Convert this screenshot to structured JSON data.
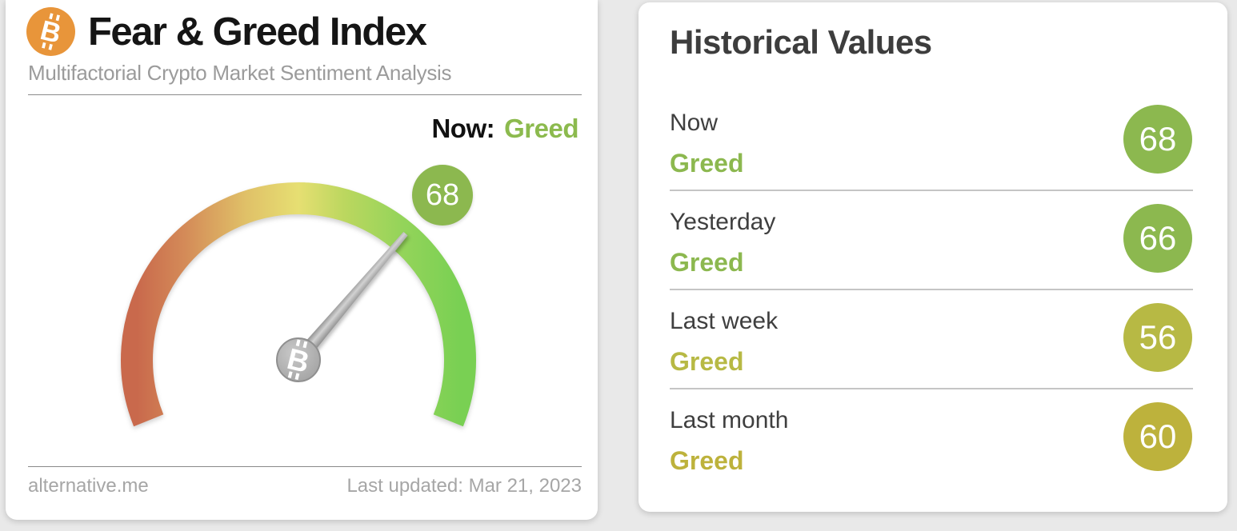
{
  "chart_data": {
    "type": "gauge",
    "title": "Fear & Greed Index",
    "subtitle": "Multifactorial Crypto Market Sentiment Analysis",
    "value": 68,
    "range": [
      0,
      100
    ],
    "classification": "Greed",
    "scale_description": "semicircular arc gradient: red (fear, 0) through yellow to green (greed, 100)",
    "historical": [
      {
        "label": "Now",
        "value": 68,
        "classification": "Greed"
      },
      {
        "label": "Yesterday",
        "value": 66,
        "classification": "Greed"
      },
      {
        "label": "Last week",
        "value": 56,
        "classification": "Greed"
      },
      {
        "label": "Last month",
        "value": 60,
        "classification": "Greed"
      }
    ],
    "source": "alternative.me",
    "last_updated": "Mar 21, 2023"
  },
  "brand": {
    "bitcoin_orange": "#e8953a"
  },
  "icons": {
    "bitcoin_glyph": "B"
  },
  "fear_greed_card": {
    "title": "Fear & Greed Index",
    "subtitle": "Multifactorial Crypto Market Sentiment Analysis",
    "now_label": "Now:",
    "now_value": "Greed",
    "now_value_color": "#8cba4e",
    "gauge": {
      "value": "68",
      "badge_color": "#8cb84f",
      "arc_colors": [
        "#c9694c",
        "#d48b58",
        "#e0c168",
        "#e6df72",
        "#bcd75f",
        "#94d45a",
        "#79d053"
      ]
    },
    "footer_left": "alternative.me",
    "footer_right": "Last updated: Mar 21, 2023"
  },
  "historical_card": {
    "title": "Historical Values",
    "rows": [
      {
        "label": "Now",
        "classification": "Greed",
        "value": "68",
        "color": "#8cb84f"
      },
      {
        "label": "Yesterday",
        "classification": "Greed",
        "value": "66",
        "color": "#8cb84f"
      },
      {
        "label": "Last week",
        "classification": "Greed",
        "value": "56",
        "color": "#b7b944"
      },
      {
        "label": "Last month",
        "classification": "Greed",
        "value": "60",
        "color": "#bdb23c"
      }
    ]
  }
}
